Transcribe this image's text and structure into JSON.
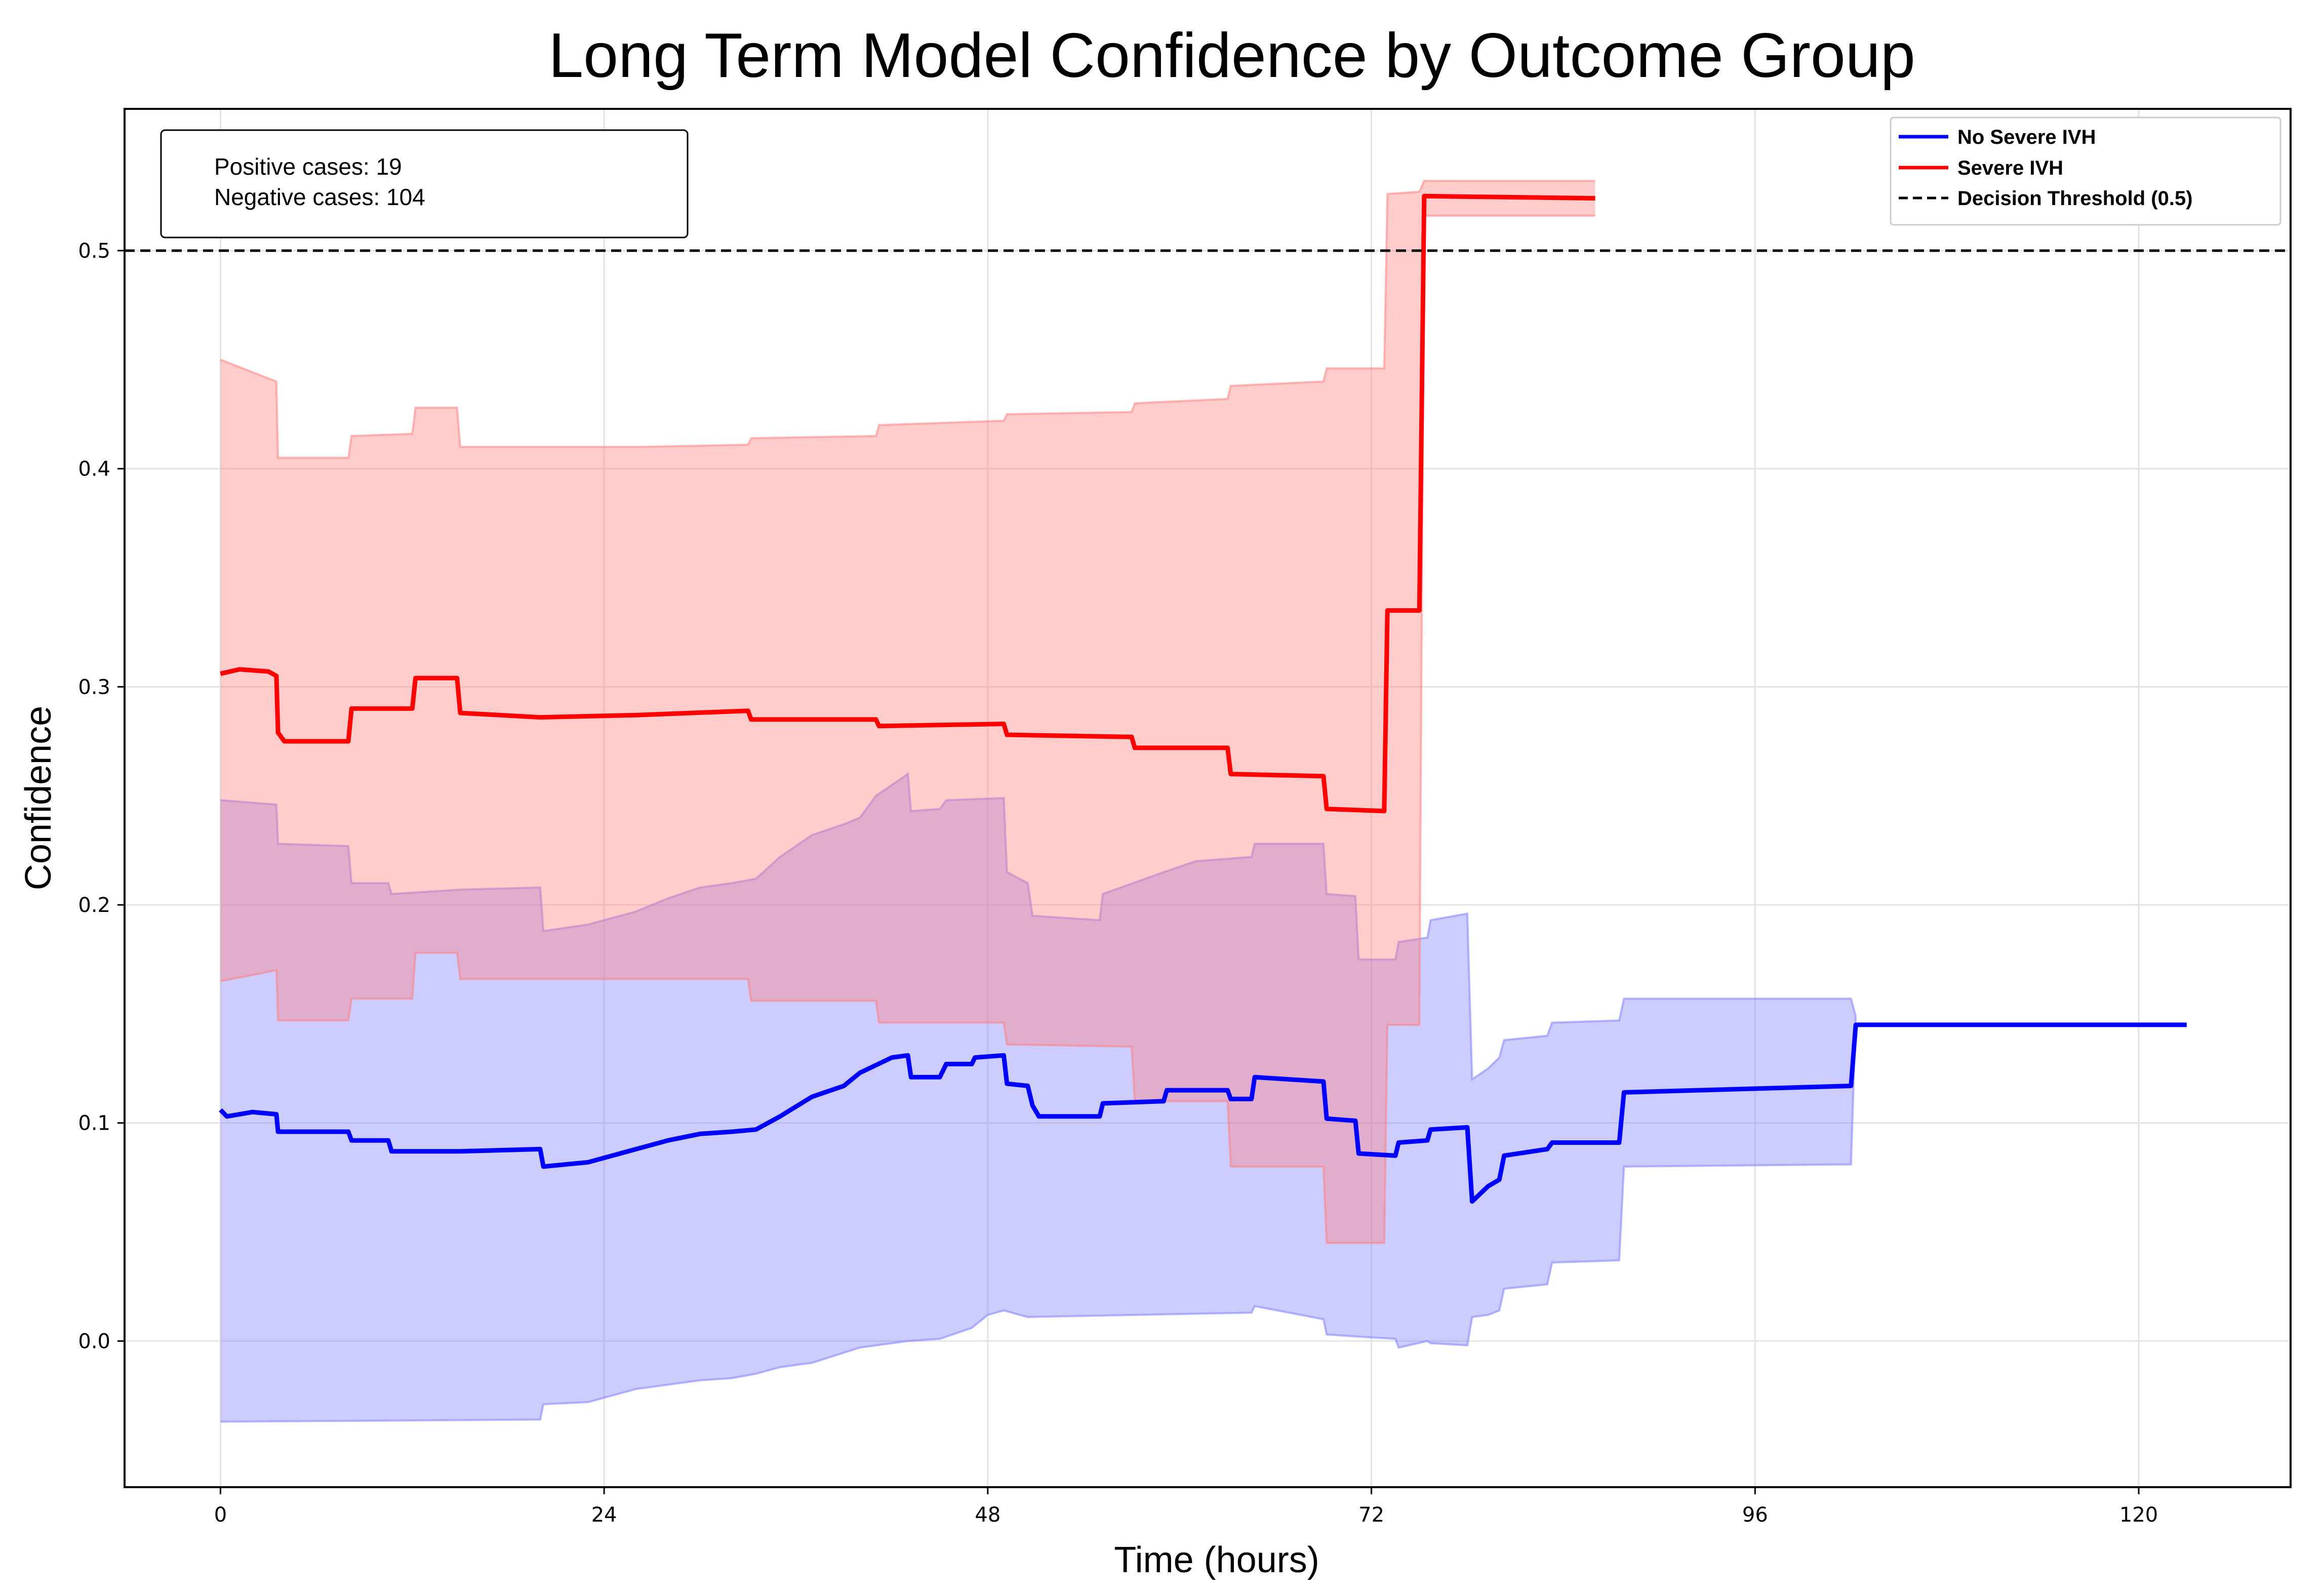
{
  "chart_data": {
    "type": "line",
    "title": "Long Term Model Confidence by Outcome Group",
    "xlabel": "Time (hours)",
    "ylabel": "Confidence",
    "xlim": [
      -6,
      129.5
    ],
    "ylim": [
      -0.067,
      0.565
    ],
    "xticks": [
      0,
      24,
      48,
      72,
      96,
      120
    ],
    "yticks": [
      0.0,
      0.1,
      0.2,
      0.3,
      0.4,
      0.5
    ],
    "ytick_labels": [
      "0.0",
      "0.1",
      "0.2",
      "0.3",
      "0.4",
      "0.5"
    ],
    "grid": true,
    "legend_position": "top-right",
    "info_box": {
      "positive": "Positive cases: 19",
      "negative": "Negative cases: 104"
    },
    "threshold": {
      "name": "Decision Threshold (0.5)",
      "value": 0.5,
      "color": "#000000"
    },
    "series": [
      {
        "name": "No Severe IVH",
        "color": "#0000ff",
        "band_color": "#8080ff",
        "mean": [
          [
            0,
            0.106
          ],
          [
            0.4,
            0.103
          ],
          [
            2,
            0.105
          ],
          [
            3.5,
            0.104
          ],
          [
            3.6,
            0.096
          ],
          [
            8,
            0.096
          ],
          [
            8.2,
            0.092
          ],
          [
            10.5,
            0.092
          ],
          [
            10.7,
            0.087
          ],
          [
            15,
            0.087
          ],
          [
            20,
            0.088
          ],
          [
            20.2,
            0.08
          ],
          [
            23,
            0.082
          ],
          [
            26,
            0.088
          ],
          [
            28,
            0.092
          ],
          [
            30,
            0.095
          ],
          [
            32,
            0.096
          ],
          [
            33.5,
            0.097
          ],
          [
            35,
            0.103
          ],
          [
            37,
            0.112
          ],
          [
            39,
            0.117
          ],
          [
            40,
            0.123
          ],
          [
            42,
            0.13
          ],
          [
            43,
            0.131
          ],
          [
            43.2,
            0.121
          ],
          [
            45,
            0.121
          ],
          [
            45.4,
            0.127
          ],
          [
            47,
            0.127
          ],
          [
            47.2,
            0.13
          ],
          [
            49,
            0.131
          ],
          [
            49.2,
            0.118
          ],
          [
            50.5,
            0.117
          ],
          [
            50.8,
            0.108
          ],
          [
            51.2,
            0.103
          ],
          [
            55,
            0.103
          ],
          [
            55.2,
            0.109
          ],
          [
            59,
            0.11
          ],
          [
            59.2,
            0.115
          ],
          [
            63,
            0.115
          ],
          [
            63.2,
            0.111
          ],
          [
            64.5,
            0.111
          ],
          [
            64.7,
            0.121
          ],
          [
            69,
            0.119
          ],
          [
            69.2,
            0.102
          ],
          [
            71,
            0.101
          ],
          [
            71.2,
            0.086
          ],
          [
            73.5,
            0.085
          ],
          [
            73.7,
            0.091
          ],
          [
            75.5,
            0.092
          ],
          [
            75.7,
            0.097
          ],
          [
            78,
            0.098
          ],
          [
            78.3,
            0.064
          ],
          [
            79.3,
            0.071
          ],
          [
            80,
            0.074
          ],
          [
            80.3,
            0.085
          ],
          [
            83,
            0.088
          ],
          [
            83.3,
            0.091
          ],
          [
            87.5,
            0.091
          ],
          [
            87.8,
            0.114
          ],
          [
            102,
            0.117
          ],
          [
            102.3,
            0.145
          ],
          [
            123,
            0.145
          ]
        ],
        "upper": [
          [
            0,
            0.248
          ],
          [
            3.5,
            0.246
          ],
          [
            3.6,
            0.228
          ],
          [
            8,
            0.227
          ],
          [
            8.2,
            0.21
          ],
          [
            10.5,
            0.21
          ],
          [
            10.7,
            0.205
          ],
          [
            15,
            0.207
          ],
          [
            20,
            0.208
          ],
          [
            20.2,
            0.188
          ],
          [
            23,
            0.191
          ],
          [
            26,
            0.197
          ],
          [
            28,
            0.203
          ],
          [
            30,
            0.208
          ],
          [
            32,
            0.21
          ],
          [
            33.5,
            0.212
          ],
          [
            35,
            0.222
          ],
          [
            37,
            0.232
          ],
          [
            39,
            0.237
          ],
          [
            40,
            0.24
          ],
          [
            41,
            0.25
          ],
          [
            43,
            0.26
          ],
          [
            43.2,
            0.243
          ],
          [
            45,
            0.244
          ],
          [
            45.4,
            0.248
          ],
          [
            49,
            0.249
          ],
          [
            49.2,
            0.215
          ],
          [
            50.5,
            0.21
          ],
          [
            50.8,
            0.195
          ],
          [
            55,
            0.193
          ],
          [
            55.2,
            0.205
          ],
          [
            59,
            0.215
          ],
          [
            61,
            0.22
          ],
          [
            64.5,
            0.222
          ],
          [
            64.7,
            0.228
          ],
          [
            69,
            0.228
          ],
          [
            69.2,
            0.205
          ],
          [
            71,
            0.204
          ],
          [
            71.2,
            0.175
          ],
          [
            73.5,
            0.175
          ],
          [
            73.7,
            0.183
          ],
          [
            75.5,
            0.185
          ],
          [
            75.7,
            0.193
          ],
          [
            78,
            0.196
          ],
          [
            78.3,
            0.12
          ],
          [
            79.3,
            0.125
          ],
          [
            80,
            0.13
          ],
          [
            80.3,
            0.138
          ],
          [
            83,
            0.14
          ],
          [
            83.3,
            0.146
          ],
          [
            87.5,
            0.147
          ],
          [
            87.8,
            0.157
          ],
          [
            102,
            0.157
          ],
          [
            102.3,
            0.149
          ]
        ],
        "lower": [
          [
            0,
            -0.037
          ],
          [
            20,
            -0.036
          ],
          [
            20.2,
            -0.029
          ],
          [
            23,
            -0.028
          ],
          [
            26,
            -0.022
          ],
          [
            30,
            -0.018
          ],
          [
            32,
            -0.017
          ],
          [
            33.5,
            -0.015
          ],
          [
            35,
            -0.012
          ],
          [
            37,
            -0.01
          ],
          [
            40,
            -0.003
          ],
          [
            43,
            0.0
          ],
          [
            45,
            0.001
          ],
          [
            47,
            0.006
          ],
          [
            48,
            0.012
          ],
          [
            49,
            0.014
          ],
          [
            50.5,
            0.011
          ],
          [
            64.5,
            0.013
          ],
          [
            64.7,
            0.016
          ],
          [
            69,
            0.01
          ],
          [
            69.2,
            0.003
          ],
          [
            71.2,
            0.002
          ],
          [
            73.5,
            0.001
          ],
          [
            73.7,
            -0.003
          ],
          [
            75.5,
            0.0
          ],
          [
            75.7,
            -0.001
          ],
          [
            78,
            -0.002
          ],
          [
            78.3,
            0.011
          ],
          [
            79.3,
            0.012
          ],
          [
            80,
            0.014
          ],
          [
            80.3,
            0.024
          ],
          [
            83,
            0.026
          ],
          [
            83.3,
            0.036
          ],
          [
            87.5,
            0.037
          ],
          [
            87.8,
            0.08
          ],
          [
            102,
            0.081
          ],
          [
            102.3,
            0.149
          ]
        ]
      },
      {
        "name": "Severe IVH",
        "color": "#ff0000",
        "band_color": "#ff8080",
        "mean": [
          [
            0,
            0.306
          ],
          [
            1.2,
            0.308
          ],
          [
            3,
            0.307
          ],
          [
            3.5,
            0.305
          ],
          [
            3.6,
            0.279
          ],
          [
            4,
            0.275
          ],
          [
            8,
            0.275
          ],
          [
            8.2,
            0.29
          ],
          [
            12,
            0.29
          ],
          [
            12.2,
            0.304
          ],
          [
            14.8,
            0.304
          ],
          [
            15,
            0.288
          ],
          [
            20,
            0.286
          ],
          [
            26,
            0.287
          ],
          [
            33,
            0.289
          ],
          [
            33.2,
            0.285
          ],
          [
            41,
            0.285
          ],
          [
            41.2,
            0.282
          ],
          [
            49,
            0.283
          ],
          [
            49.2,
            0.278
          ],
          [
            57,
            0.277
          ],
          [
            57.2,
            0.272
          ],
          [
            63,
            0.272
          ],
          [
            63.2,
            0.26
          ],
          [
            69,
            0.259
          ],
          [
            69.2,
            0.244
          ],
          [
            72.8,
            0.243
          ],
          [
            73,
            0.335
          ],
          [
            75,
            0.335
          ],
          [
            75.3,
            0.525
          ],
          [
            86,
            0.524
          ]
        ],
        "upper": [
          [
            0,
            0.45
          ],
          [
            3.5,
            0.44
          ],
          [
            3.6,
            0.405
          ],
          [
            8,
            0.405
          ],
          [
            8.2,
            0.415
          ],
          [
            12,
            0.416
          ],
          [
            12.2,
            0.428
          ],
          [
            14.8,
            0.428
          ],
          [
            15,
            0.41
          ],
          [
            20,
            0.41
          ],
          [
            26,
            0.41
          ],
          [
            33,
            0.411
          ],
          [
            33.2,
            0.414
          ],
          [
            41,
            0.415
          ],
          [
            41.2,
            0.42
          ],
          [
            49,
            0.422
          ],
          [
            49.2,
            0.425
          ],
          [
            57,
            0.426
          ],
          [
            57.2,
            0.43
          ],
          [
            63,
            0.432
          ],
          [
            63.2,
            0.438
          ],
          [
            69,
            0.44
          ],
          [
            69.2,
            0.446
          ],
          [
            72.8,
            0.446
          ],
          [
            73,
            0.526
          ],
          [
            75,
            0.527
          ],
          [
            75.3,
            0.532
          ],
          [
            86,
            0.532
          ]
        ],
        "lower": [
          [
            0,
            0.165
          ],
          [
            3.5,
            0.17
          ],
          [
            3.6,
            0.147
          ],
          [
            8,
            0.147
          ],
          [
            8.2,
            0.157
          ],
          [
            12,
            0.157
          ],
          [
            12.2,
            0.178
          ],
          [
            14.8,
            0.178
          ],
          [
            15,
            0.166
          ],
          [
            33,
            0.166
          ],
          [
            33.2,
            0.156
          ],
          [
            41,
            0.156
          ],
          [
            41.2,
            0.146
          ],
          [
            49,
            0.146
          ],
          [
            49.2,
            0.136
          ],
          [
            57,
            0.135
          ],
          [
            57.2,
            0.11
          ],
          [
            63,
            0.11
          ],
          [
            63.2,
            0.08
          ],
          [
            69,
            0.08
          ],
          [
            69.2,
            0.045
          ],
          [
            72.8,
            0.045
          ],
          [
            73,
            0.145
          ],
          [
            75,
            0.145
          ],
          [
            75.3,
            0.516
          ],
          [
            86,
            0.516
          ]
        ]
      }
    ]
  }
}
